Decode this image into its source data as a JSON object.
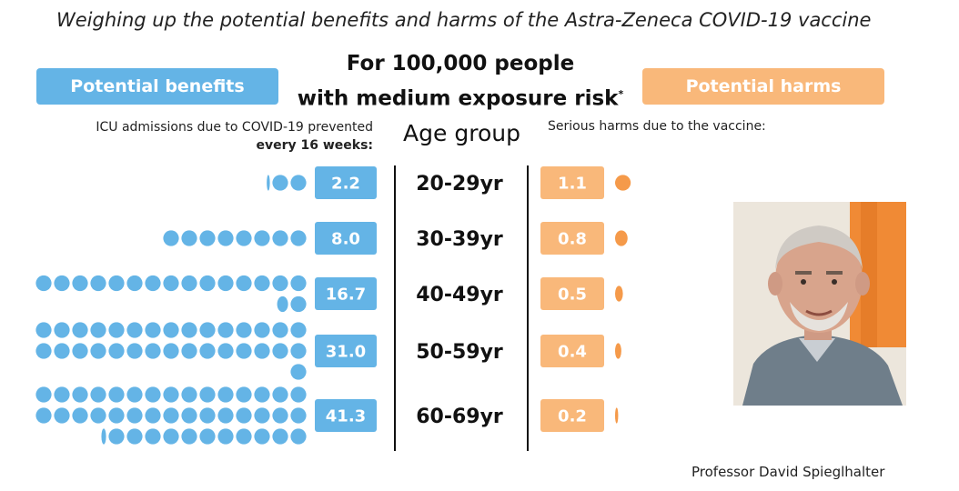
{
  "title": "Weighing up the potential benefits and harms of the Astra-Zeneca COVID-19 vaccine",
  "header": {
    "line1": "For 100,000 people",
    "line2": "with medium exposure risk",
    "asterisk": "*"
  },
  "benefits": {
    "label": "Potential benefits",
    "subtitle_line1": "ICU admissions due to COVID-19 prevented",
    "subtitle_line2": "every 16 weeks:"
  },
  "harms": {
    "label": "Potential harms",
    "subtitle": "Serious harms due to the vaccine:"
  },
  "age_group_label": "Age group",
  "caption": "Professor David Spieglhalter",
  "colors": {
    "benefit": "#64b4e6",
    "harm": "#f9b87a",
    "harm_dot": "#f59a4a"
  },
  "chart_data": {
    "type": "bar",
    "categories": [
      "20-29yr",
      "30-39yr",
      "40-49yr",
      "50-59yr",
      "60-69yr"
    ],
    "series": [
      {
        "name": "Potential benefits",
        "values": [
          2.2,
          8.0,
          16.7,
          31.0,
          41.3
        ],
        "labels": [
          "2.2",
          "8.0",
          "16.7",
          "31.0",
          "41.3"
        ]
      },
      {
        "name": "Potential harms",
        "values": [
          1.1,
          0.8,
          0.5,
          0.4,
          0.2
        ],
        "labels": [
          "1.1",
          "0.8",
          "0.5",
          "0.4",
          "0.2"
        ]
      }
    ]
  }
}
